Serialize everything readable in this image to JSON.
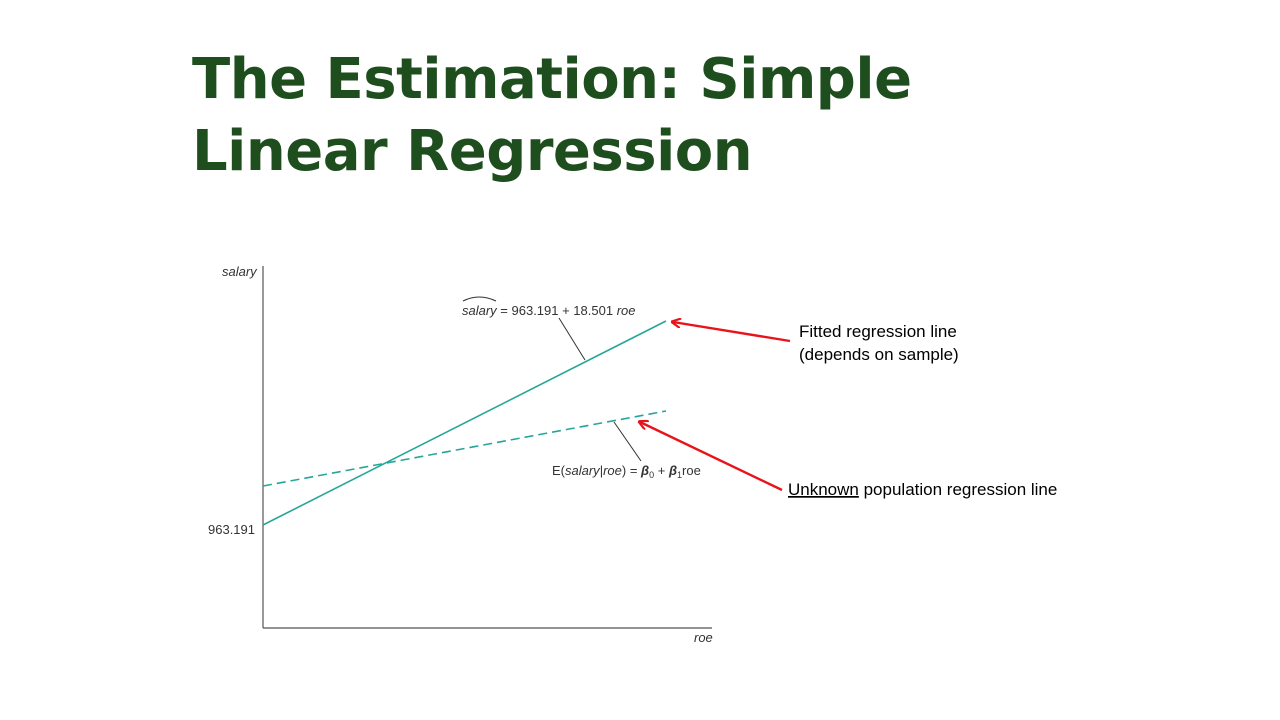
{
  "slide": {
    "title_line1": "The Estimation: Simple",
    "title_line2": "Linear Regression"
  },
  "diagram": {
    "y_axis_label": "salary",
    "x_axis_label": "roe",
    "intercept_label": "963.191",
    "fitted_eq_lhs": "salary",
    "fitted_eq_rhs": " = 963.191 + 18.501 ",
    "fitted_eq_var": "roe",
    "pop_eq_prefix": "E(",
    "pop_eq_salary": "salary",
    "pop_eq_bar": "|",
    "pop_eq_roe": "roe",
    "pop_eq_mid": ") = ",
    "pop_eq_beta0": "β",
    "pop_eq_sub0": "0",
    "pop_eq_plus": " + ",
    "pop_eq_beta1": "β",
    "pop_eq_sub1": "1",
    "pop_eq_end": "roe",
    "fitted_note_line1": "Fitted regression line",
    "fitted_note_line2": "(depends on sample)",
    "pop_note_underlined": "Unknown",
    "pop_note_rest": " population regression line"
  },
  "colors": {
    "title": "#1e4d1e",
    "line": "#26a69a",
    "arrow": "#e8141a",
    "axis": "#555555"
  }
}
